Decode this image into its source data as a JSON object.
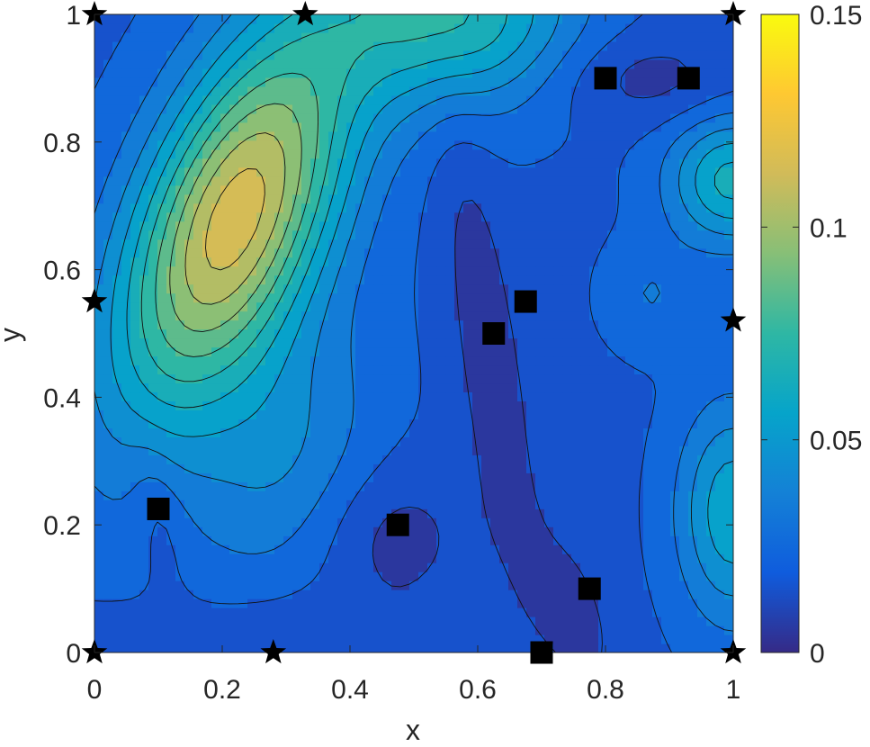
{
  "chart_data": {
    "type": "heatmap",
    "subtype": "filled-contour",
    "title": "",
    "xlabel": "x",
    "ylabel": "y",
    "xlim": [
      0,
      1
    ],
    "ylim": [
      0,
      1
    ],
    "xticks": [
      "0",
      "0.2",
      "0.4",
      "0.6",
      "0.8",
      "1"
    ],
    "yticks": [
      "0",
      "0.2",
      "0.4",
      "0.6",
      "0.8",
      "1"
    ],
    "colorbar": {
      "range": [
        0,
        0.15
      ],
      "ticks": [
        "0",
        "0.05",
        "0.1",
        "0.15"
      ],
      "colormap": "parula"
    },
    "colormap_stops": [
      "#352a87",
      "#0f5cdd",
      "#1481d6",
      "#06a4ca",
      "#2eb7a4",
      "#87bf77",
      "#d1bb59",
      "#fec832",
      "#f9fb0e"
    ],
    "contour_levels": [
      0.01,
      0.02,
      0.03,
      0.04,
      0.05,
      0.06,
      0.07,
      0.08,
      0.09,
      0.1,
      0.11
    ],
    "peaks": [
      {
        "x": 0.22,
        "y": 0.68,
        "value": 0.112
      },
      {
        "x": 0.56,
        "y": 1.0,
        "value": 0.07
      },
      {
        "x": 1.0,
        "y": 0.74,
        "value": 0.06
      },
      {
        "x": 1.0,
        "y": 0.22,
        "value": 0.05
      }
    ],
    "series": [
      {
        "marker": "star",
        "points": [
          [
            0,
            1
          ],
          [
            0.33,
            1
          ],
          [
            1,
            1
          ],
          [
            0,
            0.55
          ],
          [
            1,
            0.52
          ],
          [
            0,
            0
          ],
          [
            0.28,
            0
          ],
          [
            1,
            0
          ]
        ]
      },
      {
        "marker": "square",
        "points": [
          [
            0.8,
            0.9
          ],
          [
            0.93,
            0.9
          ],
          [
            0.675,
            0.55
          ],
          [
            0.625,
            0.5
          ],
          [
            0.1,
            0.225
          ],
          [
            0.475,
            0.2
          ],
          [
            0.775,
            0.1
          ],
          [
            0.7,
            0
          ]
        ]
      }
    ]
  }
}
